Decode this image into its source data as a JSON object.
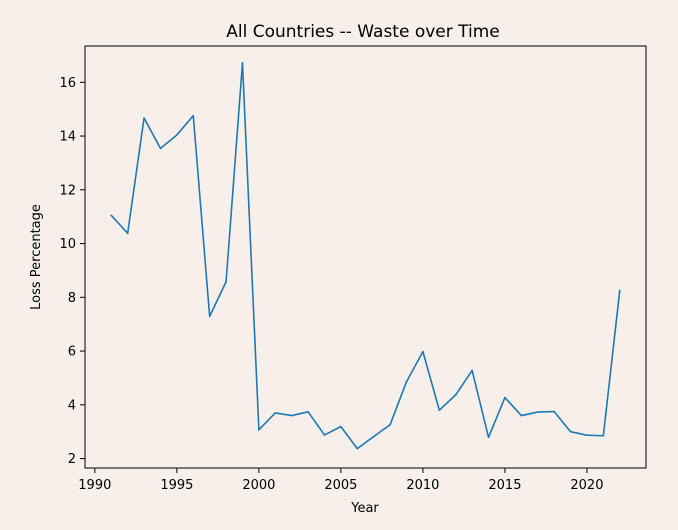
{
  "chart_data": {
    "type": "line",
    "title": "All Countries -- Waste over Time",
    "xlabel": "Year",
    "ylabel": "Loss Percentage",
    "xlim": [
      1989.4,
      2023.6
    ],
    "ylim": [
      1.65,
      17.35
    ],
    "x_ticks": [
      1990,
      1995,
      2000,
      2005,
      2010,
      2015,
      2020
    ],
    "y_ticks": [
      2,
      4,
      6,
      8,
      10,
      12,
      14,
      16
    ],
    "grid": false,
    "legend": "none",
    "series": [
      {
        "name": "",
        "color": "#1f77b4",
        "x": [
          1991,
          1992,
          1993,
          1994,
          1995,
          1996,
          1997,
          1998,
          1999,
          2000,
          2001,
          2002,
          2003,
          2004,
          2005,
          2006,
          2007,
          2008,
          2009,
          2010,
          2011,
          2012,
          2013,
          2014,
          2015,
          2016,
          2017,
          2018,
          2019,
          2020,
          2021,
          2022
        ],
        "y": [
          11.05,
          10.38,
          14.67,
          13.54,
          14.04,
          14.76,
          7.29,
          8.58,
          16.72,
          3.07,
          3.7,
          3.6,
          3.74,
          2.88,
          3.19,
          2.37,
          2.82,
          3.26,
          4.86,
          5.98,
          3.8,
          4.37,
          5.28,
          2.79,
          4.27,
          3.6,
          3.73,
          3.75,
          3.0,
          2.87,
          2.85,
          8.25
        ]
      }
    ]
  },
  "colors": {
    "figure_background": "#f7f0ea",
    "axes_background": "#f7f0ea",
    "line": "#1f77b4",
    "axes": "#000000"
  }
}
